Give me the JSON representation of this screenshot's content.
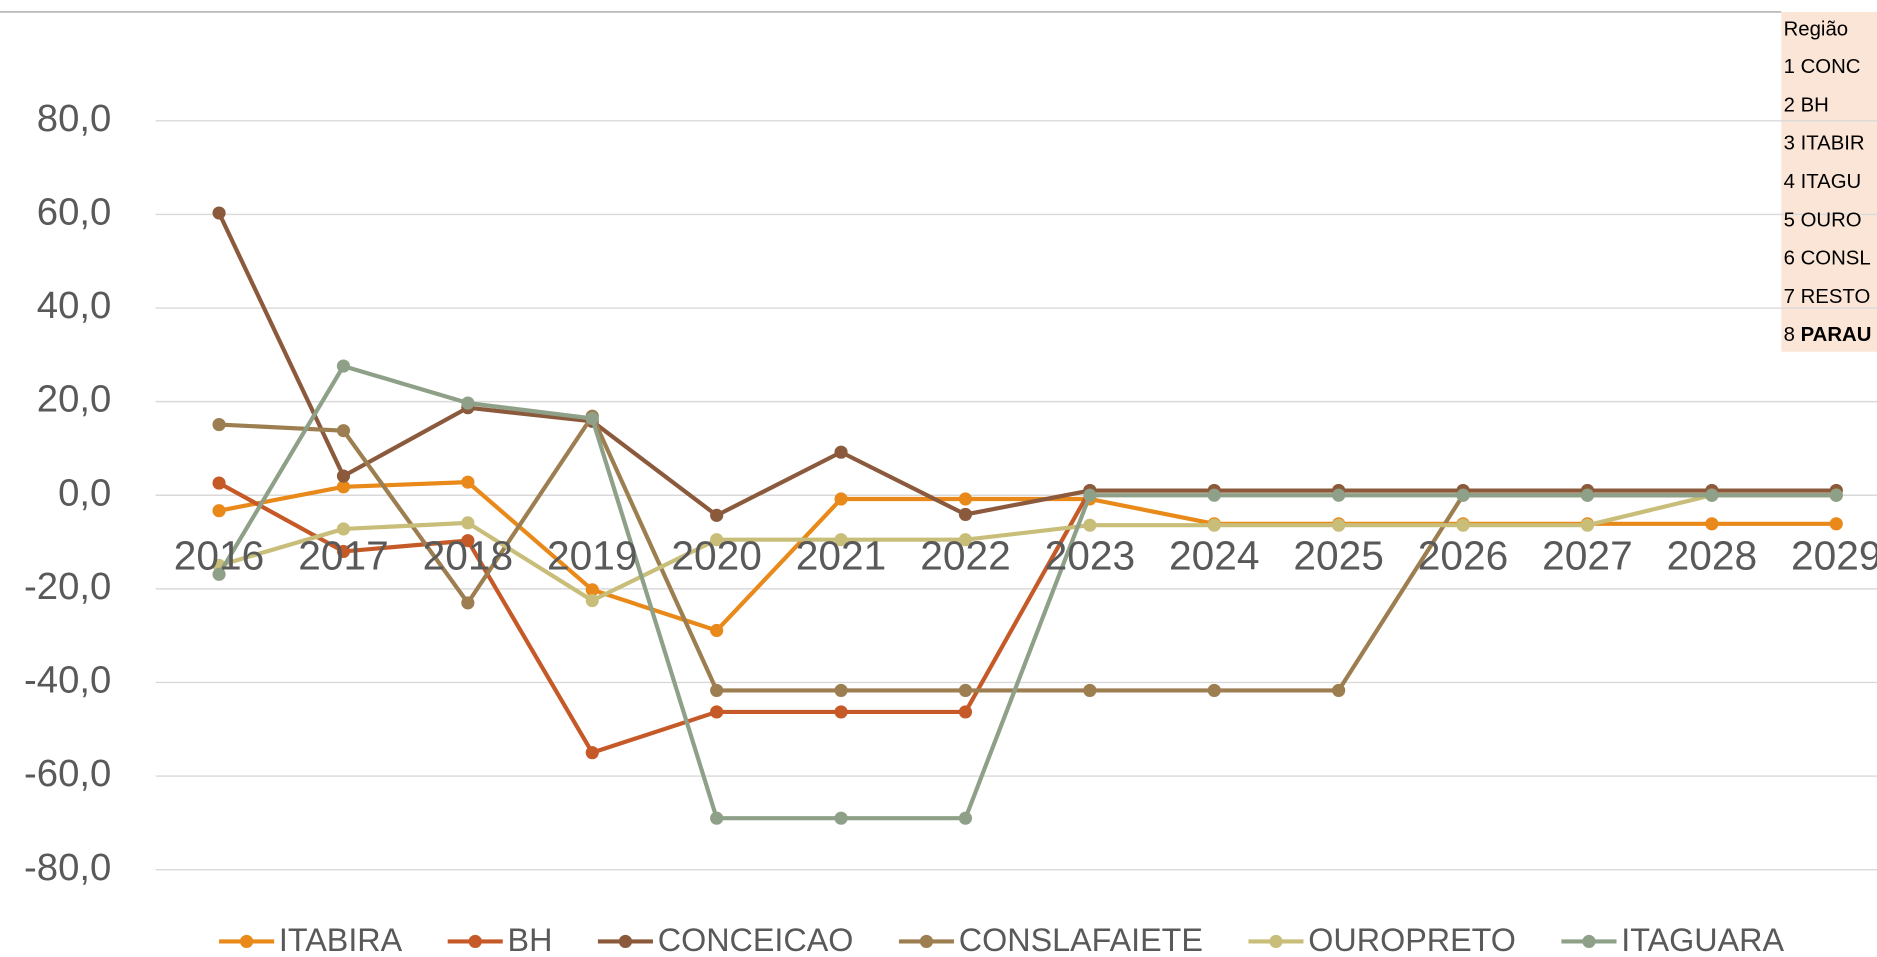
{
  "chart_data": {
    "type": "line",
    "categories": [
      "2016",
      "2017",
      "2018",
      "2019",
      "2020",
      "2021",
      "2022",
      "2023",
      "2024",
      "2025",
      "2026",
      "2027",
      "2028",
      "2029"
    ],
    "series": [
      {
        "name": "ITABIRA",
        "color": "#e8891a",
        "values": [
          -3.3,
          1.8,
          2.8,
          -20.2,
          -28.9,
          -0.8,
          -0.8,
          -0.8,
          -6.1,
          -6.1,
          -6.1,
          -6.1,
          -6.1,
          -6.1
        ]
      },
      {
        "name": "BH",
        "color": "#c55a28",
        "values": [
          2.6,
          -12.0,
          -9.7,
          -55.0,
          -46.3,
          -46.3,
          -46.3,
          1.0,
          1.0,
          1.0,
          1.0,
          1.0,
          1.0,
          1.0
        ]
      },
      {
        "name": "CONCEICAO",
        "color": "#8b5a3c",
        "values": [
          60.3,
          4.1,
          18.7,
          15.8,
          -4.3,
          9.2,
          -4.1,
          1.0,
          1.0,
          1.0,
          1.0,
          1.0,
          1.0,
          1.0
        ]
      },
      {
        "name": "CONSLAFAIETE",
        "color": "#9c7e50",
        "values": [
          15.1,
          13.8,
          -23.0,
          16.9,
          -41.7,
          -41.7,
          -41.7,
          -41.7,
          -41.7,
          -41.7,
          0.0,
          0.0,
          0.0,
          0.0
        ]
      },
      {
        "name": "OUROPRETO",
        "color": "#c8be7a",
        "values": [
          -15.0,
          -7.2,
          -5.9,
          -22.5,
          -9.5,
          -9.5,
          -9.5,
          -6.4,
          -6.4,
          -6.4,
          -6.4,
          -6.4,
          0.0,
          0.0
        ]
      },
      {
        "name": "ITAGUARA",
        "color": "#8fa088",
        "values": [
          -16.9,
          27.6,
          19.7,
          16.4,
          -69.0,
          -69.0,
          -69.0,
          0.0,
          0.0,
          0.0,
          0.0,
          0.0,
          0.0,
          0.0
        ]
      }
    ],
    "ylim": [
      -80,
      80
    ],
    "yticks": [
      {
        "value": 80,
        "label": "80,0"
      },
      {
        "value": 60,
        "label": "60,0"
      },
      {
        "value": 40,
        "label": "40,0"
      },
      {
        "value": 20,
        "label": "20,0"
      },
      {
        "value": 0,
        "label": "0,0"
      },
      {
        "value": -20,
        "label": "-20,0"
      },
      {
        "value": -40,
        "label": "-40,0"
      },
      {
        "value": -60,
        "label": "-60,0"
      },
      {
        "value": -80,
        "label": "-80,0"
      }
    ],
    "grid": true,
    "legend": "bottom"
  },
  "table": {
    "header": "Região",
    "rows": [
      {
        "num": "1",
        "name": "CONC"
      },
      {
        "num": "2",
        "name": "BH"
      },
      {
        "num": "3",
        "name": "ITABIR"
      },
      {
        "num": "4",
        "name": "ITAGU"
      },
      {
        "num": "5",
        "name": "OURO"
      },
      {
        "num": "6",
        "name": "CONSL"
      },
      {
        "num": "7",
        "name": "RESTO"
      },
      {
        "num": "8",
        "name": "PARAU",
        "bold": true
      }
    ]
  }
}
